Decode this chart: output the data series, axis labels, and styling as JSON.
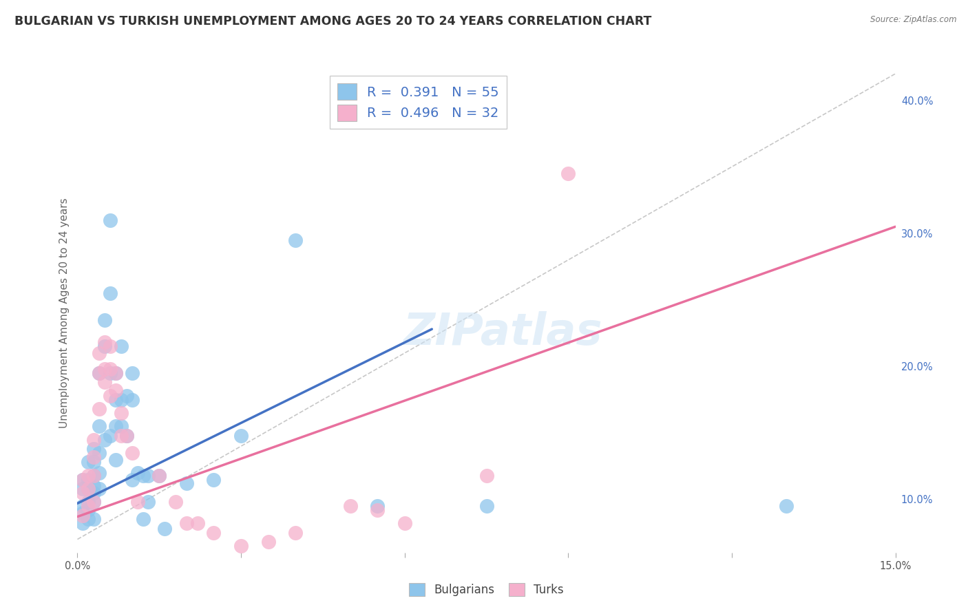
{
  "title": "BULGARIAN VS TURKISH UNEMPLOYMENT AMONG AGES 20 TO 24 YEARS CORRELATION CHART",
  "source": "Source: ZipAtlas.com",
  "ylabel": "Unemployment Among Ages 20 to 24 years",
  "xlim": [
    0.0,
    0.15
  ],
  "ylim": [
    0.06,
    0.42
  ],
  "xticks": [
    0.0,
    0.03,
    0.06,
    0.09,
    0.12,
    0.15
  ],
  "xticklabels": [
    "0.0%",
    "",
    "",
    "",
    "",
    "15.0%"
  ],
  "yticks_right": [
    0.1,
    0.2,
    0.3,
    0.4
  ],
  "ytick_labels_right": [
    "10.0%",
    "20.0%",
    "30.0%",
    "40.0%"
  ],
  "bg_color": "#ffffff",
  "grid_color": "#c8c8c8",
  "blue_color": "#8ec5eb",
  "pink_color": "#f5b0cc",
  "blue_line_color": "#4472c4",
  "pink_line_color": "#e8709e",
  "diag_color": "#b0b0b0",
  "text_color": "#4472c4",
  "watermark": "ZIPatlas",
  "blue_points_x": [
    0.001,
    0.001,
    0.001,
    0.001,
    0.001,
    0.002,
    0.002,
    0.002,
    0.002,
    0.002,
    0.002,
    0.003,
    0.003,
    0.003,
    0.003,
    0.003,
    0.003,
    0.003,
    0.004,
    0.004,
    0.004,
    0.004,
    0.004,
    0.005,
    0.005,
    0.005,
    0.006,
    0.006,
    0.006,
    0.006,
    0.007,
    0.007,
    0.007,
    0.007,
    0.008,
    0.008,
    0.008,
    0.009,
    0.009,
    0.01,
    0.01,
    0.01,
    0.011,
    0.012,
    0.012,
    0.013,
    0.013,
    0.015,
    0.016,
    0.02,
    0.025,
    0.03,
    0.04,
    0.055,
    0.075,
    0.13
  ],
  "blue_points_y": [
    0.115,
    0.108,
    0.095,
    0.09,
    0.082,
    0.128,
    0.115,
    0.108,
    0.098,
    0.092,
    0.085,
    0.138,
    0.128,
    0.118,
    0.11,
    0.105,
    0.098,
    0.085,
    0.195,
    0.155,
    0.135,
    0.12,
    0.108,
    0.235,
    0.215,
    0.145,
    0.31,
    0.255,
    0.195,
    0.148,
    0.195,
    0.175,
    0.155,
    0.13,
    0.215,
    0.175,
    0.155,
    0.178,
    0.148,
    0.195,
    0.175,
    0.115,
    0.12,
    0.118,
    0.085,
    0.118,
    0.098,
    0.118,
    0.078,
    0.112,
    0.115,
    0.148,
    0.295,
    0.095,
    0.095,
    0.095
  ],
  "pink_points_x": [
    0.001,
    0.001,
    0.001,
    0.002,
    0.002,
    0.002,
    0.003,
    0.003,
    0.003,
    0.003,
    0.004,
    0.004,
    0.004,
    0.005,
    0.005,
    0.005,
    0.006,
    0.006,
    0.006,
    0.007,
    0.007,
    0.008,
    0.008,
    0.009,
    0.01,
    0.011,
    0.015,
    0.018,
    0.02,
    0.022,
    0.025,
    0.03,
    0.035,
    0.04,
    0.05,
    0.055,
    0.06,
    0.075,
    0.09
  ],
  "pink_points_y": [
    0.115,
    0.105,
    0.088,
    0.118,
    0.108,
    0.095,
    0.145,
    0.132,
    0.118,
    0.098,
    0.21,
    0.195,
    0.168,
    0.218,
    0.198,
    0.188,
    0.215,
    0.198,
    0.178,
    0.195,
    0.182,
    0.165,
    0.148,
    0.148,
    0.135,
    0.098,
    0.118,
    0.098,
    0.082,
    0.082,
    0.075,
    0.065,
    0.068,
    0.075,
    0.095,
    0.092,
    0.082,
    0.118,
    0.345
  ],
  "blue_line_x": [
    0.0,
    0.065
  ],
  "blue_line_y": [
    0.097,
    0.228
  ],
  "pink_line_x": [
    0.0,
    0.15
  ],
  "pink_line_y": [
    0.087,
    0.305
  ],
  "diag_line_x": [
    0.0,
    0.15
  ],
  "diag_line_y": [
    0.07,
    0.42
  ],
  "title_fontsize": 12.5,
  "tick_fontsize": 10.5,
  "ylabel_fontsize": 11,
  "watermark_fontsize": 46,
  "legend_label1": "Bulgarians",
  "legend_label2": "Turks"
}
